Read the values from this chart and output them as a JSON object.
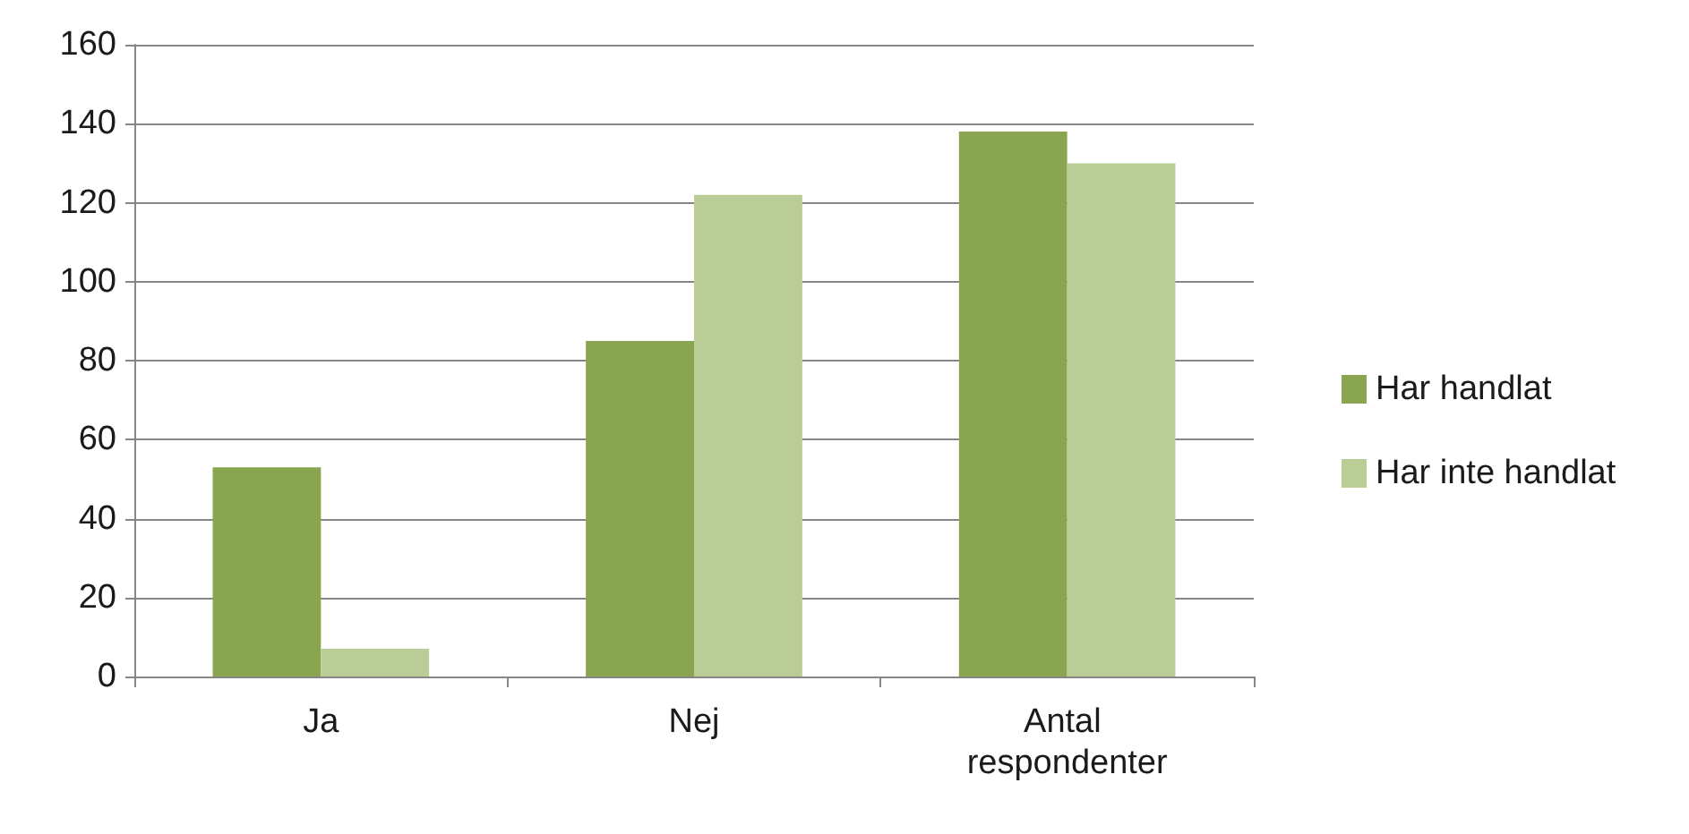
{
  "chart_data": {
    "type": "bar",
    "categories": [
      "Ja",
      "Nej",
      "Antal respondenter"
    ],
    "series": [
      {
        "name": "Har handlat",
        "color": "#8aa54f",
        "values": [
          53,
          85,
          138
        ]
      },
      {
        "name": "Har inte handlat",
        "color": "#bacd97",
        "values": [
          7,
          122,
          130
        ]
      }
    ],
    "ylim": [
      0,
      160
    ],
    "yticks": [
      0,
      20,
      40,
      60,
      80,
      100,
      120,
      140,
      160
    ],
    "grid": "y",
    "legend": "right"
  }
}
